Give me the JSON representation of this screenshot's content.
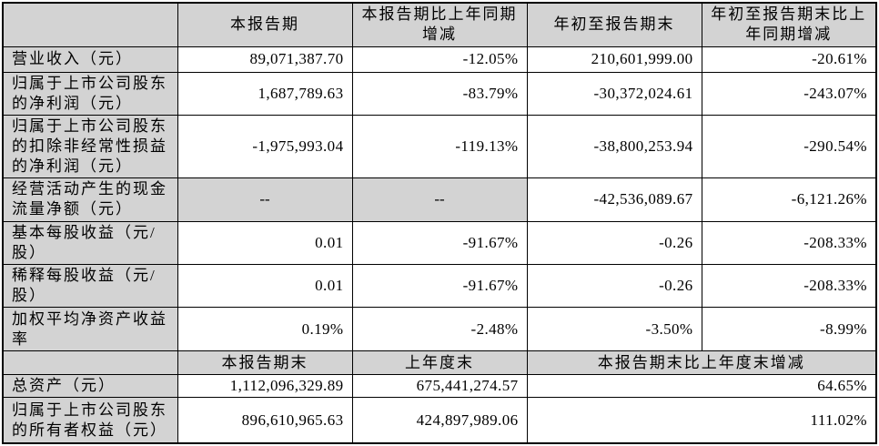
{
  "colors": {
    "header_and_label_bg": "#d3d3d3",
    "cell_bg": "#ffffff",
    "border": "#000000",
    "text": "#000000"
  },
  "section_periods": {
    "headers": {
      "blank": "",
      "current_period": "本报告期",
      "current_period_yoy_change": "本报告期比上年同期\n增减",
      "year_to_date": "年初至报告期末",
      "year_to_date_yoy_change": "年初至报告期末比上\n年同期增减"
    },
    "rows": [
      {
        "label": "营业收入（元）",
        "current": "89,071,387.70",
        "current_change": "-12.05%",
        "ytd": "210,601,999.00",
        "ytd_change": "-20.61%"
      },
      {
        "label": "归属于上市公司股东\n的净利润（元）",
        "current": "1,687,789.63",
        "current_change": "-83.79%",
        "ytd": "-30,372,024.61",
        "ytd_change": "-243.07%"
      },
      {
        "label": "归属于上市公司股东\n的扣除非经常性损益\n的净利润（元）",
        "current": "-1,975,993.04",
        "current_change": "-119.13%",
        "ytd": "-38,800,253.94",
        "ytd_change": "-290.54%"
      },
      {
        "label": "经营活动产生的现金\n流量净额（元）",
        "current": "--",
        "current_change": "--",
        "ytd": "-42,536,089.67",
        "ytd_change": "-6,121.26%"
      },
      {
        "label": "基本每股收益（元/\n股）",
        "current": "0.01",
        "current_change": "-91.67%",
        "ytd": "-0.26",
        "ytd_change": "-208.33%"
      },
      {
        "label": "稀释每股收益（元/\n股）",
        "current": "0.01",
        "current_change": "-91.67%",
        "ytd": "-0.26",
        "ytd_change": "-208.33%"
      },
      {
        "label": "加权平均净资产收益\n率",
        "current": "0.19%",
        "current_change": "-2.48%",
        "ytd": "-3.50%",
        "ytd_change": "-8.99%"
      }
    ]
  },
  "section_position": {
    "headers": {
      "blank": "",
      "end_of_period": "本报告期末",
      "end_of_prior_year": "上年度末",
      "period_end_vs_prior_year_end_change": "本报告期末比上年度末增减"
    },
    "rows": [
      {
        "label": "总资产（元）",
        "end_of_period": "1,112,096,329.89",
        "end_of_prior_year": "675,441,274.57",
        "change": "64.65%"
      },
      {
        "label": "归属于上市公司股东\n的所有者权益（元）",
        "end_of_period": "896,610,965.63",
        "end_of_prior_year": "424,897,989.06",
        "change": "111.02%"
      }
    ]
  }
}
